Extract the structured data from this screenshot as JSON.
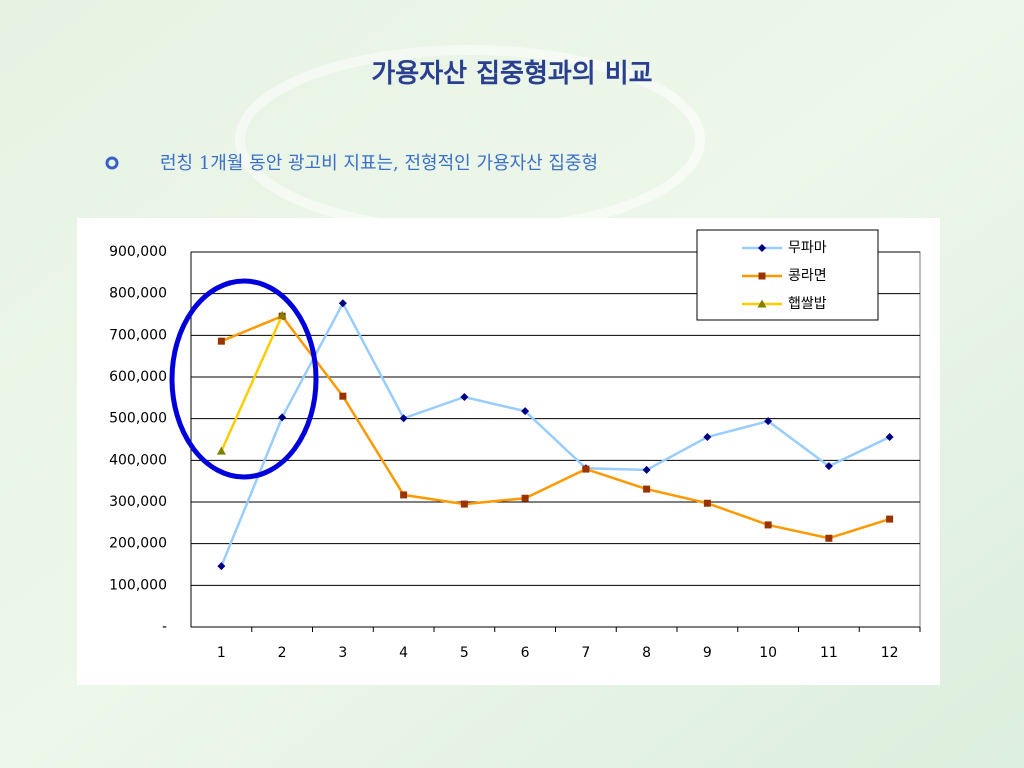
{
  "title": "가용자산 집중형과의 비교",
  "bullet": "런칭 1개월 동안 광고비 지표는, 전형적인 가용자산 집중형",
  "chart_data": {
    "type": "line",
    "categories": [
      "1",
      "2",
      "3",
      "4",
      "5",
      "6",
      "7",
      "8",
      "9",
      "10",
      "11",
      "12"
    ],
    "series": [
      {
        "name": "무파마",
        "color": "#99ccff",
        "marker_color": "#000080",
        "marker": "diamond",
        "values": [
          146000,
          503000,
          777000,
          501000,
          552000,
          518000,
          381000,
          377000,
          456000,
          494000,
          386000,
          456000
        ]
      },
      {
        "name": "콩라면",
        "color": "#ff9900",
        "marker_color": "#993300",
        "marker": "square",
        "values": [
          686000,
          746000,
          554000,
          317000,
          295000,
          309000,
          379000,
          331000,
          297000,
          245000,
          213000,
          259000
        ]
      },
      {
        "name": "햅쌀밥",
        "color": "#ffcc00",
        "marker_color": "#808000",
        "marker": "triangle",
        "values": [
          422000,
          748000,
          null,
          null,
          null,
          null,
          null,
          null,
          null,
          null,
          null,
          null
        ]
      }
    ],
    "ylim": [
      0,
      900000
    ],
    "yticks": [
      {
        "value": 0,
        "label": "-"
      },
      {
        "value": 100000,
        "label": "100,000"
      },
      {
        "value": 200000,
        "label": "200,000"
      },
      {
        "value": 300000,
        "label": "300,000"
      },
      {
        "value": 400000,
        "label": "400,000"
      },
      {
        "value": 500000,
        "label": "500,000"
      },
      {
        "value": 600000,
        "label": "600,000"
      },
      {
        "value": 700000,
        "label": "700,000"
      },
      {
        "value": 800000,
        "label": "800,000"
      },
      {
        "value": 900000,
        "label": "900,000"
      }
    ],
    "grid": true,
    "legend": "upper right"
  }
}
